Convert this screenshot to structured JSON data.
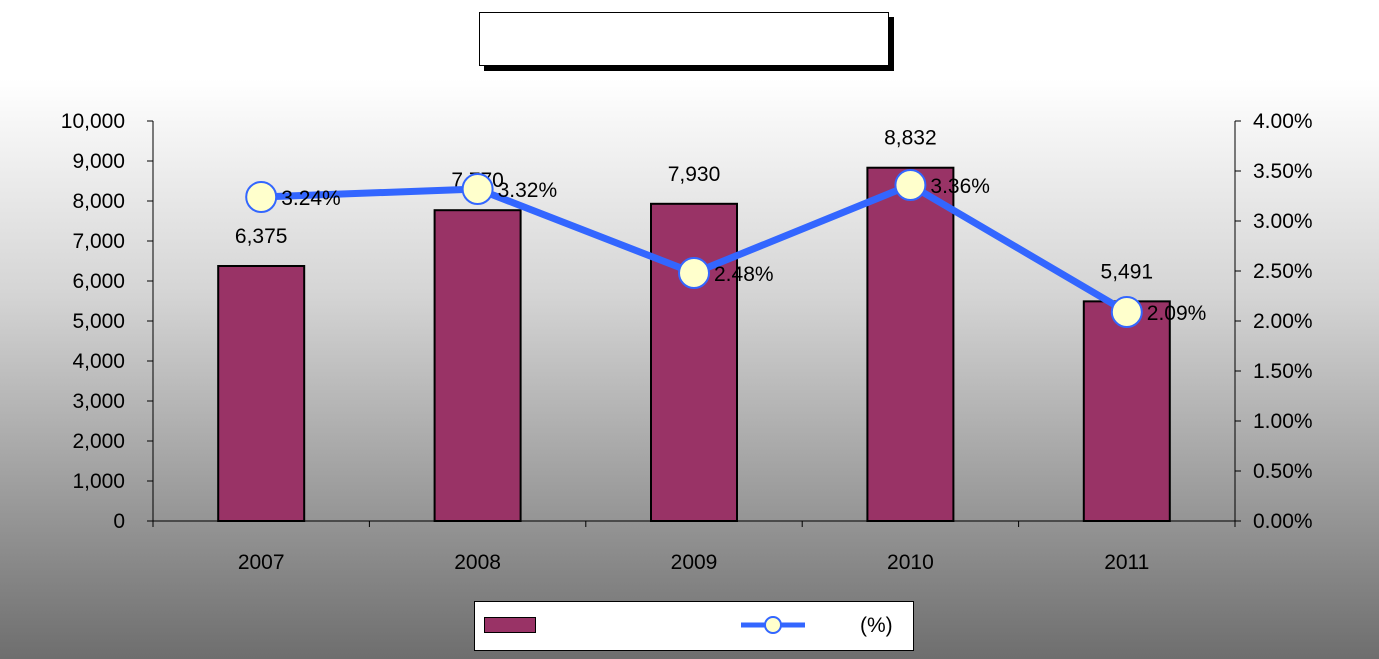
{
  "chart_data": {
    "type": "bar+line",
    "title": "",
    "categories": [
      "2007",
      "2008",
      "2009",
      "2010",
      "2011"
    ],
    "series": [
      {
        "name": "",
        "type": "bar",
        "axis": "left",
        "values": [
          6375,
          7770,
          7930,
          8832,
          5491
        ],
        "labels": [
          "6,375",
          "7,770",
          "7,930",
          "8,832",
          "5,491"
        ],
        "color": "#993366"
      },
      {
        "name": "(%)",
        "type": "line",
        "axis": "right",
        "values": [
          3.24,
          3.32,
          2.48,
          3.36,
          2.09
        ],
        "labels": [
          "3.24%",
          "3.32%",
          "2.48%",
          "3.36%",
          "2.09%"
        ],
        "color": "#3366ff",
        "marker_color": "#ffffcc"
      }
    ],
    "y_left": {
      "ylim": [
        0,
        10000
      ],
      "ticks": [
        0,
        1000,
        2000,
        3000,
        4000,
        5000,
        6000,
        7000,
        8000,
        9000,
        10000
      ],
      "tick_labels": [
        "0",
        "1,000",
        "2,000",
        "3,000",
        "4,000",
        "5,000",
        "6,000",
        "7,000",
        "8,000",
        "9,000",
        "10,000"
      ]
    },
    "y_right": {
      "ylim": [
        0,
        4
      ],
      "ticks": [
        0,
        0.5,
        1,
        1.5,
        2,
        2.5,
        3,
        3.5,
        4
      ],
      "tick_labels": [
        "0.00%",
        "0.50%",
        "1.00%",
        "1.50%",
        "2.00%",
        "2.50%",
        "3.00%",
        "3.50%",
        "4.00%"
      ]
    },
    "xlabel": "",
    "grid": false,
    "legend_position": "bottom"
  }
}
